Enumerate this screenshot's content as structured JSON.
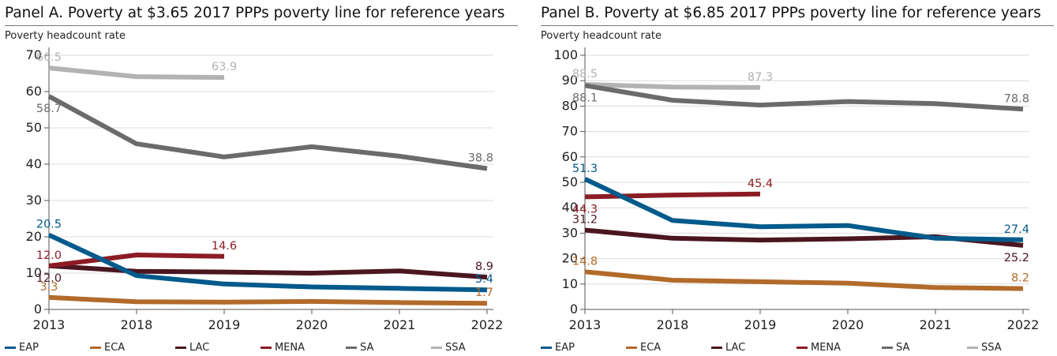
{
  "legend": [
    {
      "name": "EAP",
      "color": "#005a8b"
    },
    {
      "name": "ECA",
      "color": "#b26b2a"
    },
    {
      "name": "LAC",
      "color": "#4a1620"
    },
    {
      "name": "MENA",
      "color": "#8c1c24"
    },
    {
      "name": "SA",
      "color": "#6b6b6b"
    },
    {
      "name": "SSA",
      "color": "#b3b3b3"
    }
  ],
  "chart_data": [
    {
      "type": "line",
      "title": "Panel A. Poverty at $3.65 2017 PPPs poverty line for reference years",
      "ylabel": "Poverty headcount rate",
      "xlabel": "",
      "categories": [
        "2013",
        "2018",
        "2019",
        "2020",
        "2021",
        "2022"
      ],
      "ylim": [
        0,
        70
      ],
      "yticks": [
        0,
        10,
        20,
        30,
        40,
        50,
        60,
        70
      ],
      "grid": true,
      "series": [
        {
          "name": "EAP",
          "color": "#005a8b",
          "values": [
            20.5,
            9.3,
            7.0,
            6.2,
            5.8,
            5.4
          ]
        },
        {
          "name": "ECA",
          "color": "#b26b2a",
          "values": [
            3.3,
            2.1,
            2.0,
            2.2,
            1.9,
            1.7
          ]
        },
        {
          "name": "LAC",
          "color": "#4a1620",
          "values": [
            12.0,
            10.5,
            10.3,
            10.0,
            10.6,
            8.9
          ]
        },
        {
          "name": "MENA",
          "color": "#8c1c24",
          "values": [
            12.0,
            15.0,
            14.6,
            null,
            null,
            null
          ]
        },
        {
          "name": "SA",
          "color": "#6b6b6b",
          "values": [
            58.7,
            45.6,
            42.0,
            44.8,
            42.2,
            38.8
          ]
        },
        {
          "name": "SSA",
          "color": "#b3b3b3",
          "values": [
            66.5,
            64.1,
            63.9,
            null,
            null,
            null
          ]
        }
      ],
      "labels": [
        {
          "series": "SSA",
          "i": 0,
          "text": "66.5",
          "pos": "above"
        },
        {
          "series": "SSA",
          "i": 2,
          "text": "63.9",
          "pos": "above"
        },
        {
          "series": "SA",
          "i": 0,
          "text": "58.7",
          "pos": "below"
        },
        {
          "series": "SA",
          "i": 5,
          "text": "38.8",
          "pos": "above"
        },
        {
          "series": "EAP",
          "i": 0,
          "text": "20.5",
          "pos": "above"
        },
        {
          "series": "EAP",
          "i": 5,
          "text": "5.4",
          "pos": "above"
        },
        {
          "series": "MENA",
          "i": 0,
          "text": "12.0",
          "pos": "above"
        },
        {
          "series": "MENA",
          "i": 2,
          "text": "14.6",
          "pos": "above"
        },
        {
          "series": "LAC",
          "i": 0,
          "text": "12.0",
          "pos": "below"
        },
        {
          "series": "LAC",
          "i": 5,
          "text": "8.9",
          "pos": "above"
        },
        {
          "series": "ECA",
          "i": 0,
          "text": "3.3",
          "pos": "above"
        },
        {
          "series": "ECA",
          "i": 5,
          "text": "1.7",
          "pos": "above"
        }
      ]
    },
    {
      "type": "line",
      "title": "Panel B. Poverty at $6.85 2017 PPPs poverty line for reference years",
      "ylabel": "Poverty headcount rate",
      "xlabel": "",
      "categories": [
        "2013",
        "2018",
        "2019",
        "2020",
        "2021",
        "2022"
      ],
      "ylim": [
        0,
        100
      ],
      "yticks": [
        0,
        10,
        20,
        30,
        40,
        50,
        60,
        70,
        80,
        90,
        100
      ],
      "grid": true,
      "series": [
        {
          "name": "EAP",
          "color": "#005a8b",
          "values": [
            51.3,
            35.0,
            32.5,
            33.0,
            28.0,
            27.4
          ]
        },
        {
          "name": "ECA",
          "color": "#b26b2a",
          "values": [
            14.8,
            11.5,
            10.9,
            10.3,
            8.6,
            8.2
          ]
        },
        {
          "name": "LAC",
          "color": "#4a1620",
          "values": [
            31.2,
            28.0,
            27.3,
            27.8,
            28.6,
            25.2
          ]
        },
        {
          "name": "MENA",
          "color": "#8c1c24",
          "values": [
            44.3,
            45.0,
            45.4,
            null,
            null,
            null
          ]
        },
        {
          "name": "SA",
          "color": "#6b6b6b",
          "values": [
            88.1,
            82.3,
            80.4,
            81.8,
            81.0,
            78.8
          ]
        },
        {
          "name": "SSA",
          "color": "#b3b3b3",
          "values": [
            88.5,
            87.5,
            87.3,
            null,
            null,
            null
          ]
        }
      ],
      "labels": [
        {
          "series": "SSA",
          "i": 0,
          "text": "88.5",
          "pos": "above"
        },
        {
          "series": "SSA",
          "i": 2,
          "text": "87.3",
          "pos": "above"
        },
        {
          "series": "SA",
          "i": 0,
          "text": "88.1",
          "pos": "below"
        },
        {
          "series": "SA",
          "i": 5,
          "text": "78.8",
          "pos": "above"
        },
        {
          "series": "EAP",
          "i": 0,
          "text": "51.3",
          "pos": "above"
        },
        {
          "series": "EAP",
          "i": 5,
          "text": "27.4",
          "pos": "above"
        },
        {
          "series": "MENA",
          "i": 0,
          "text": "44.3",
          "pos": "below"
        },
        {
          "series": "MENA",
          "i": 2,
          "text": "45.4",
          "pos": "above"
        },
        {
          "series": "LAC",
          "i": 0,
          "text": "31.2",
          "pos": "above"
        },
        {
          "series": "LAC",
          "i": 5,
          "text": "25.2",
          "pos": "below"
        },
        {
          "series": "ECA",
          "i": 0,
          "text": "14.8",
          "pos": "above"
        },
        {
          "series": "ECA",
          "i": 5,
          "text": "8.2",
          "pos": "above"
        }
      ]
    }
  ]
}
